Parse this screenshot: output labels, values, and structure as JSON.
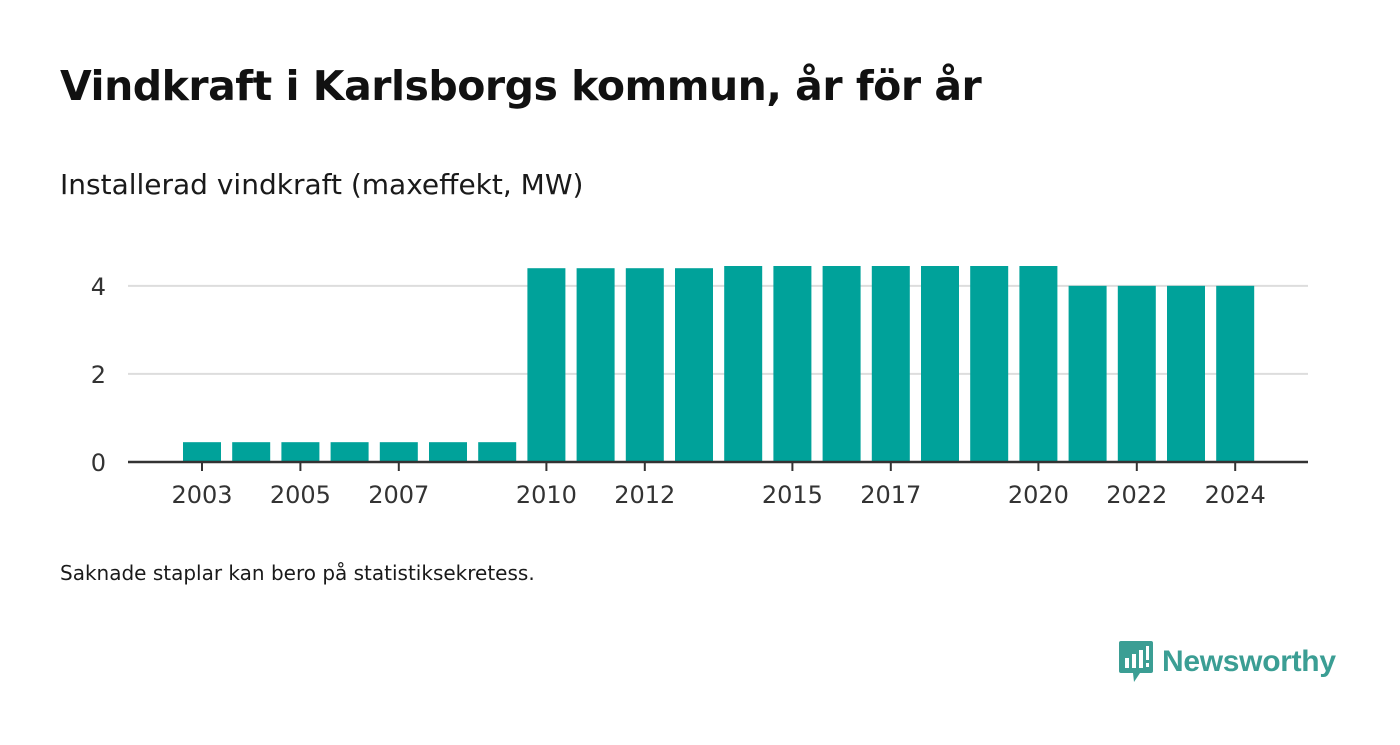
{
  "title": "Vindkraft i Karlsborgs kommun, år för år",
  "subtitle": "Installerad vindkraft (maxeffekt, MW)",
  "footnote": "Saknade staplar kan bero på statistiksekretess.",
  "brand": {
    "name": "Newsworthy",
    "logo_icon": "newsworthy-logo-icon",
    "color": "#3b9e94"
  },
  "colors": {
    "bar": "#00a29a",
    "grid": "#dddddd",
    "axis": "#333333"
  },
  "chart_data": {
    "type": "bar",
    "categories": [
      "2003",
      "2004",
      "2005",
      "2006",
      "2007",
      "2008",
      "2009",
      "2010",
      "2011",
      "2012",
      "2013",
      "2014",
      "2015",
      "2016",
      "2017",
      "2018",
      "2019",
      "2020",
      "2021",
      "2022",
      "2023",
      "2024"
    ],
    "values": [
      0.45,
      0.45,
      0.45,
      0.45,
      0.45,
      0.45,
      0.45,
      4.4,
      4.4,
      4.4,
      4.4,
      4.45,
      4.45,
      4.45,
      4.45,
      4.45,
      4.45,
      4.45,
      4.0,
      4.0,
      4.0,
      4.0
    ],
    "x_tick_labels": [
      "2003",
      "2005",
      "2007",
      "2010",
      "2012",
      "2015",
      "2017",
      "2020",
      "2022",
      "2024"
    ],
    "y_ticks": [
      "0",
      "2",
      "4"
    ],
    "ylim": [
      0,
      4.45
    ],
    "grid": true,
    "legend": "none"
  }
}
